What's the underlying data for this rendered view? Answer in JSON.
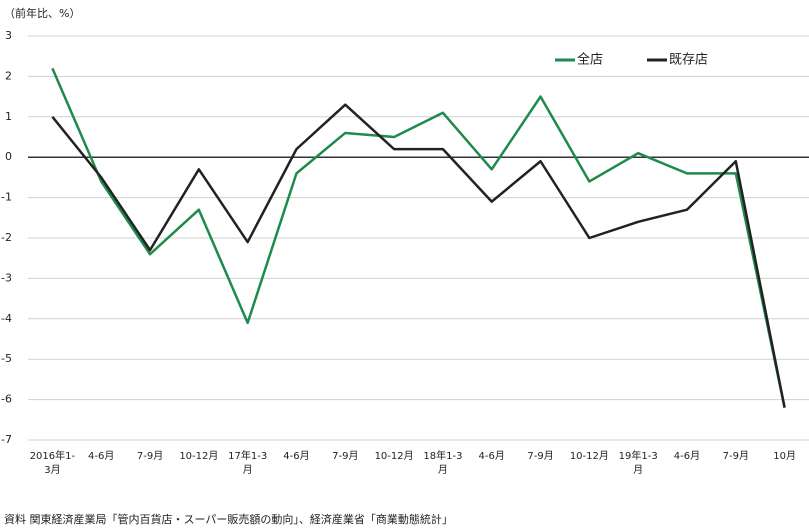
{
  "chart_data": {
    "type": "line",
    "y_label": "（前年比、%）",
    "categories": [
      "2016年1-3月",
      "4-6月",
      "7-9月",
      "10-12月",
      "17年1-3月",
      "4-6月",
      "7-9月",
      "10-12月",
      "18年1-3月",
      "4-6月",
      "7-9月",
      "10-12月",
      "19年1-3月",
      "4-6月",
      "7-9月",
      "10月"
    ],
    "series": [
      {
        "name": "全店",
        "color": "#1e8a4c",
        "values": [
          2.2,
          -0.6,
          -2.4,
          -1.3,
          -4.1,
          -0.4,
          0.6,
          0.5,
          1.1,
          -0.3,
          1.5,
          -0.6,
          0.1,
          -0.4,
          -0.4,
          -6.2
        ]
      },
      {
        "name": "既存店",
        "color": "#222222",
        "values": [
          1.0,
          -0.5,
          -2.3,
          -0.3,
          -2.1,
          0.2,
          1.3,
          0.2,
          0.2,
          -1.1,
          -0.1,
          -2.0,
          -1.6,
          -1.3,
          -0.1,
          -6.2
        ]
      }
    ],
    "ylim": [
      -7,
      3
    ],
    "yticks": [
      3,
      2,
      1,
      0,
      -1,
      -2,
      -3,
      -4,
      -5,
      -6,
      -7
    ],
    "grid": true,
    "legend": "top-right",
    "source": "資料 関東経済産業局「管内百貨店・スーパー販売額の動向」、経済産業省「商業動態統計」"
  }
}
